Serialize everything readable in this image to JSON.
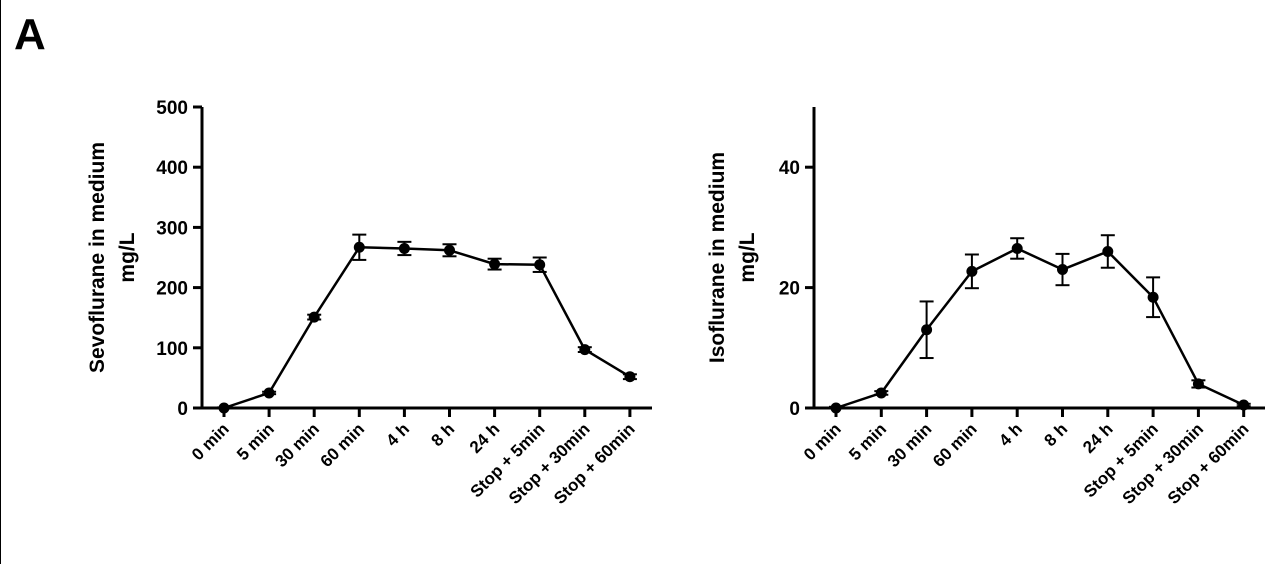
{
  "figure": {
    "panel_label": "A"
  },
  "chart_data": [
    {
      "type": "line",
      "title": "",
      "ylabel_lines": [
        "Sevoflurane in medium",
        "mg/L"
      ],
      "xlabel": "",
      "categories": [
        "0 min",
        "5 min",
        "30 min",
        "60 min",
        "4 h",
        "8 h",
        "24 h",
        "Stop + 5min",
        "Stop + 30min",
        "Stop + 60min"
      ],
      "ylim": [
        0,
        500
      ],
      "yticks": [
        0,
        100,
        200,
        300,
        400,
        500
      ],
      "series": [
        {
          "values": [
            0,
            25,
            151,
            267,
            265,
            262,
            239,
            238,
            97,
            52
          ],
          "error": [
            1,
            2,
            4,
            21,
            11,
            10,
            9,
            12,
            4,
            4
          ]
        }
      ],
      "grid": false,
      "color": "#000000"
    },
    {
      "type": "line",
      "title": "",
      "ylabel_lines": [
        "Isoflurane in medium",
        "mg/L"
      ],
      "xlabel": "",
      "categories": [
        "0 min",
        "5 min",
        "30 min",
        "60 min",
        "4 h",
        "8 h",
        "24 h",
        "Stop + 5min",
        "Stop + 30min",
        "Stop + 60min"
      ],
      "ylim": [
        0,
        50
      ],
      "yticks": [
        0,
        20,
        40
      ],
      "series": [
        {
          "values": [
            0,
            2.5,
            13,
            22.7,
            26.5,
            23,
            26,
            18.4,
            4,
            0.5
          ],
          "error": [
            0.2,
            0.3,
            4.7,
            2.8,
            1.7,
            2.6,
            2.7,
            3.3,
            0.6,
            0.2
          ]
        }
      ],
      "grid": false,
      "color": "#000000"
    }
  ]
}
